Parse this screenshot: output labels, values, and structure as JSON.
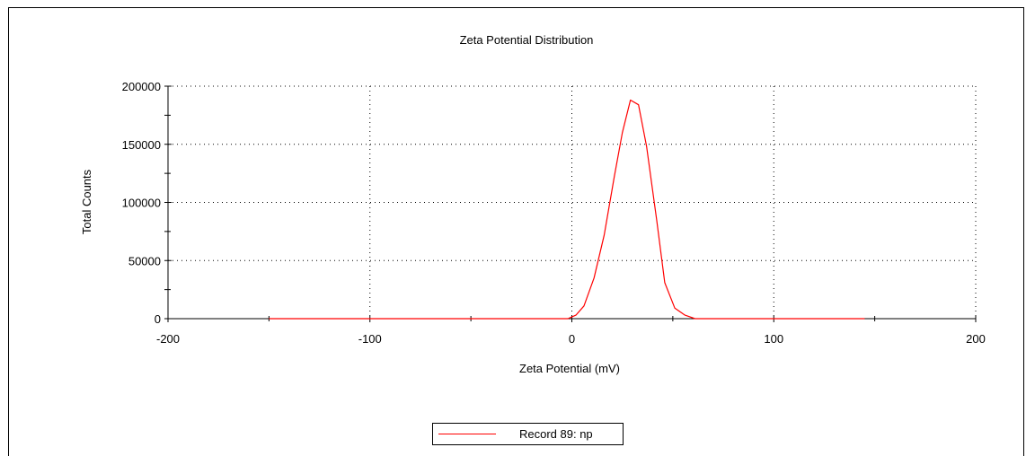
{
  "chart_data": {
    "type": "line",
    "title": "Zeta Potential Distribution",
    "xlabel": "Zeta Potential (mV)",
    "ylabel": "Total Counts",
    "xlim": [
      -200,
      200
    ],
    "ylim": [
      0,
      200000
    ],
    "xticks": [
      -200,
      -100,
      0,
      100,
      200
    ],
    "yticks": [
      0,
      50000,
      100000,
      150000,
      200000
    ],
    "x_tick_labels": [
      "-200",
      "-100",
      "0",
      "100",
      "200"
    ],
    "y_tick_labels": [
      "0",
      "50000",
      "100000",
      "150000",
      "200000"
    ],
    "grid": "dotted",
    "legend_position": "bottom",
    "series": [
      {
        "name": "Record 89: np",
        "color": "#ff0000",
        "points": [
          [
            -150,
            0
          ],
          [
            -100,
            0
          ],
          [
            -50,
            0
          ],
          [
            -2,
            0
          ],
          [
            2,
            3000
          ],
          [
            6,
            11000
          ],
          [
            11,
            35000
          ],
          [
            16,
            72000
          ],
          [
            21,
            122000
          ],
          [
            25,
            160000
          ],
          [
            29,
            188000
          ],
          [
            33,
            184000
          ],
          [
            37,
            148000
          ],
          [
            42,
            85000
          ],
          [
            46,
            31000
          ],
          [
            51,
            9000
          ],
          [
            56,
            3000
          ],
          [
            61,
            0
          ],
          [
            100,
            0
          ],
          [
            145,
            0
          ]
        ]
      }
    ]
  }
}
